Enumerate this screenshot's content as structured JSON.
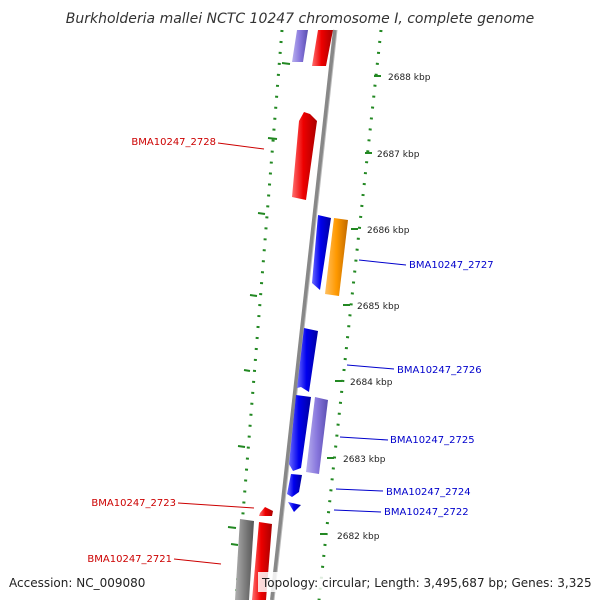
{
  "title": "Burkholderia mallei NCTC 10247 chromosome I, complete genome",
  "accession": "Accession: NC_009080",
  "topology": "Topology: circular; Length: 3,495,687 bp; Genes: 3,325",
  "kbp_labels": [
    "2688 kbp",
    "2687 kbp",
    "2686 kbp",
    "2685 kbp",
    "2684 kbp",
    "2683 kbp",
    "2682 kbp"
  ],
  "gene_labels": {
    "BMA10247_2728": "BMA10247_2728",
    "BMA10247_2727": "BMA10247_2727",
    "BMA10247_2726": "BMA10247_2726",
    "BMA10247_2725": "BMA10247_2725",
    "BMA10247_2724": "BMA10247_2724",
    "BMA10247_2722": "BMA10247_2722",
    "BMA10247_2723": "BMA10247_2723",
    "BMA10247_2721": "BMA10247_2721"
  },
  "colors": {
    "forward_gene": "#ee0000",
    "reverse_gene": "#0000ee",
    "rna": "#8877dd",
    "pseudo": "#ff9900",
    "backbone": "#888888",
    "gc": "#228822",
    "label_forward": "#cc0000",
    "label_reverse": "#0000cc"
  }
}
